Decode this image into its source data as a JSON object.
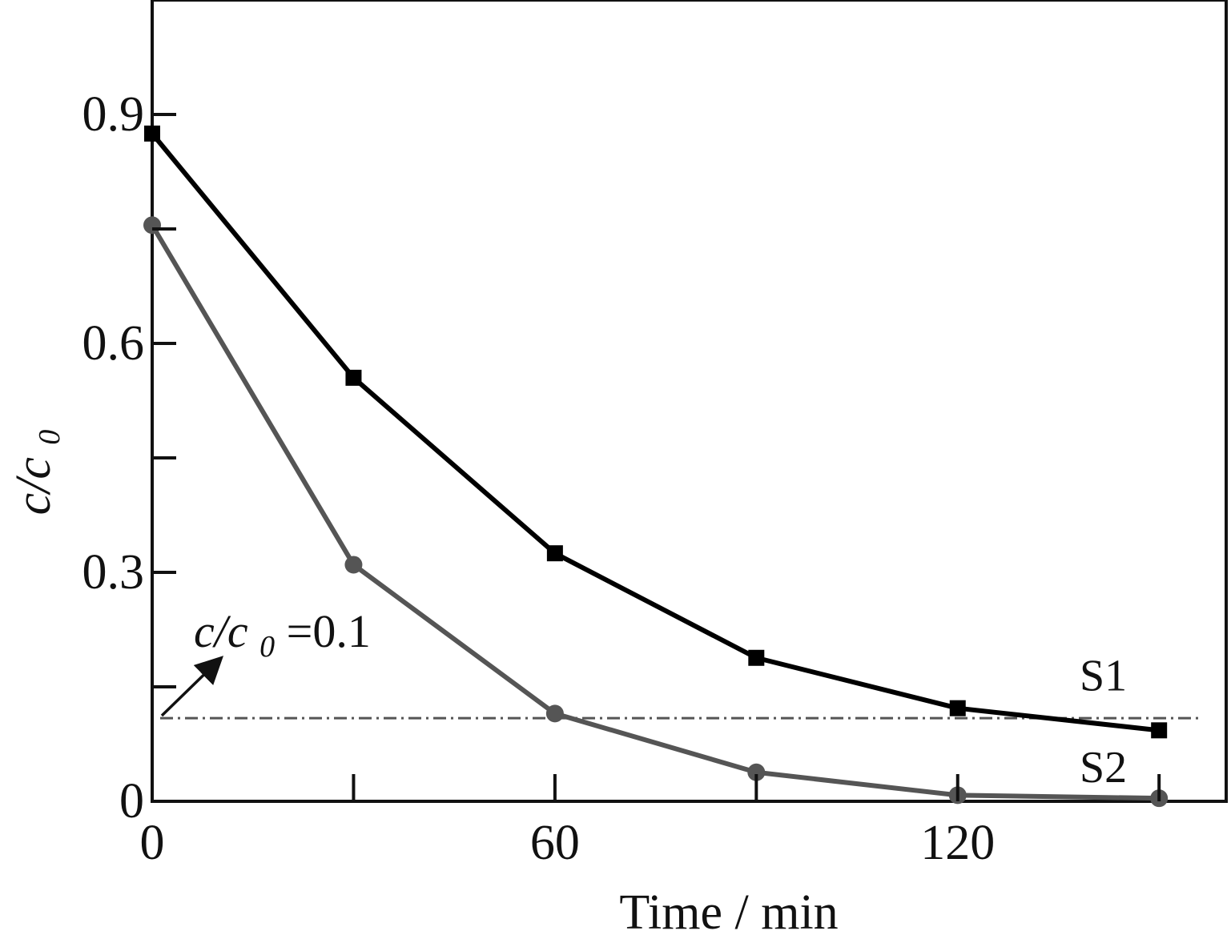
{
  "chart_data": {
    "type": "line",
    "title": "",
    "xlabel": "Time / min",
    "ylabel": {
      "main": "c/c",
      "subscript": "0"
    },
    "xlim": [
      0,
      160
    ],
    "ylim": [
      0,
      1.05
    ],
    "xticks": [
      0,
      30,
      60,
      90,
      120,
      150
    ],
    "xtick_labels": [
      "0",
      "",
      "60",
      "",
      "120",
      ""
    ],
    "yticks": [
      0,
      0.15,
      0.3,
      0.45,
      0.6,
      0.75,
      0.9,
      1.05
    ],
    "ytick_labels": [
      "0",
      "",
      "0.3",
      "",
      "0.6",
      "",
      "0.9",
      ""
    ],
    "grid": false,
    "series": [
      {
        "name": "S1",
        "color": "#000000",
        "marker": "square",
        "x": [
          0,
          30,
          60,
          90,
          120,
          150
        ],
        "y": [
          0.875,
          0.555,
          0.325,
          0.188,
          0.122,
          0.093
        ]
      },
      {
        "name": "S2",
        "color": "#555555",
        "marker": "circle",
        "x": [
          0,
          30,
          60,
          90,
          120,
          150
        ],
        "y": [
          0.755,
          0.31,
          0.115,
          0.038,
          0.008,
          0.004
        ]
      }
    ],
    "reference_line": {
      "y": 0.109,
      "style": "dash-dot",
      "color": "#555555"
    },
    "annotation": {
      "main": "c/c",
      "subscript": "0",
      "suffix": "=0.1"
    }
  }
}
